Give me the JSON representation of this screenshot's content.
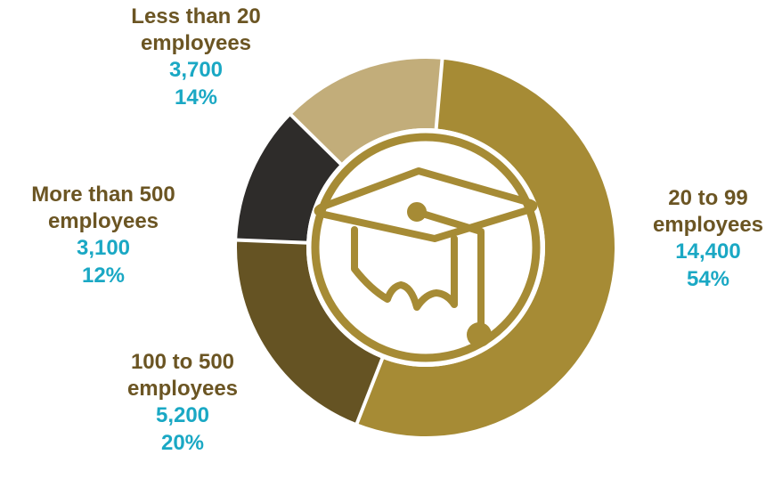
{
  "chart_data": {
    "type": "pie",
    "variant": "donut",
    "center_icon": "graduation-cap-icon",
    "slices": [
      {
        "label_lines": [
          "20 to 99",
          "employees"
        ],
        "value": 14400,
        "value_label": "14,400",
        "percent": 54,
        "percent_label": "54%",
        "color": "#a68b35"
      },
      {
        "label_lines": [
          "100 to 500",
          "employees"
        ],
        "value": 5200,
        "value_label": "5,200",
        "percent": 20,
        "percent_label": "20%",
        "color": "#655323"
      },
      {
        "label_lines": [
          "More than 500",
          "employees"
        ],
        "value": 3100,
        "value_label": "3,100",
        "percent": 12,
        "percent_label": "12%",
        "color": "#2e2c2a"
      },
      {
        "label_lines": [
          "Less than 20",
          "employees"
        ],
        "value": 3700,
        "value_label": "3,700",
        "percent": 14,
        "percent_label": "14%",
        "color": "#c2ad7a"
      }
    ]
  },
  "colors": {
    "category_text": "#6b5523",
    "value_text": "#1aa8c4",
    "inner_ring": "#a68b35",
    "icon_stroke": "#a68b35",
    "separator": "#ffffff"
  }
}
